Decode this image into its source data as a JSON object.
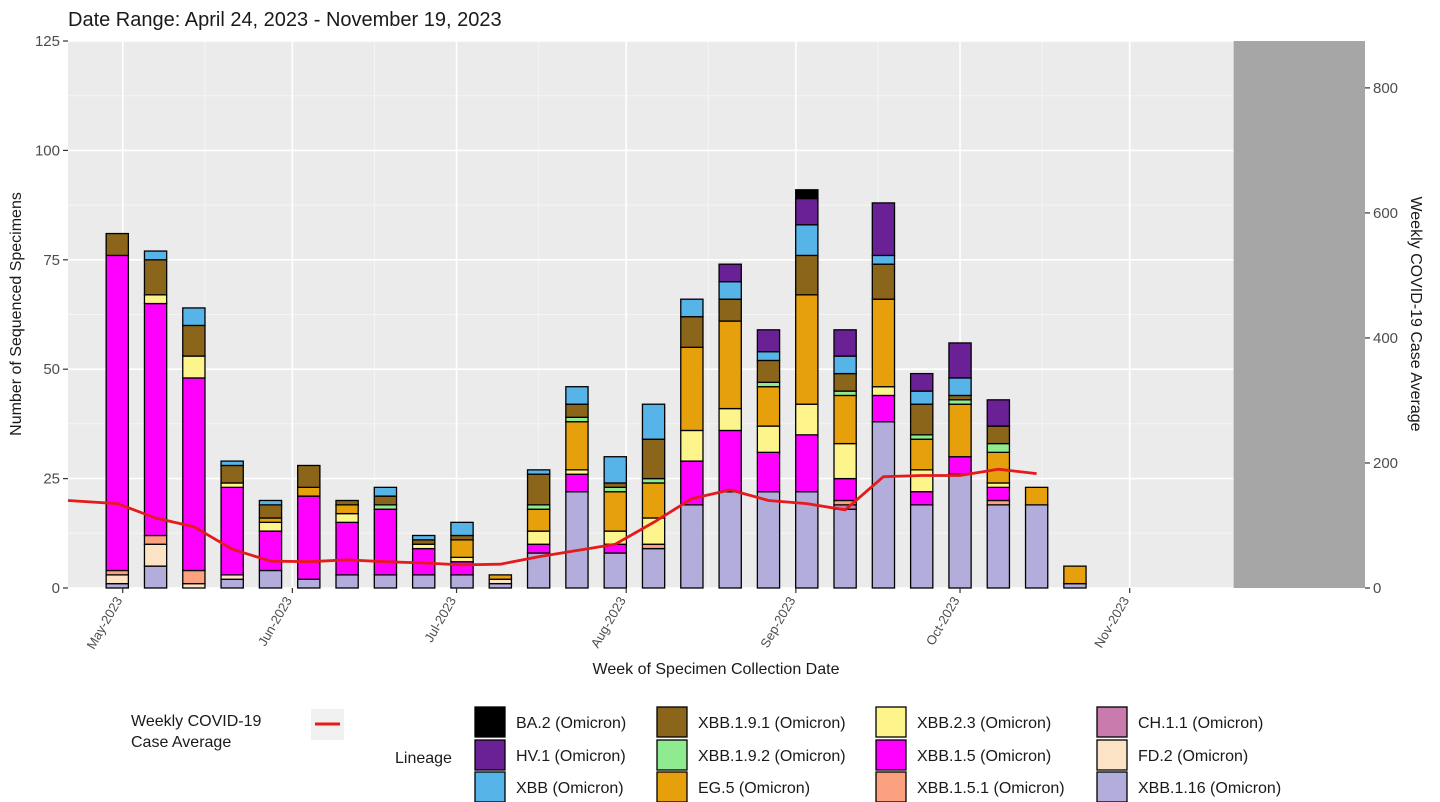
{
  "chart_data": {
    "type": "bar",
    "stacked": true,
    "title": "Date Range: April 24, 2023 - November 19, 2023",
    "xlabel": "Week of Specimen Collection Date",
    "ylabel": "Number of Sequenced Specimens",
    "y2label": "Weekly COVID-19 Case Average",
    "ylim": [
      0,
      125
    ],
    "y2lim": [
      0,
      875
    ],
    "yticks": [
      0,
      25,
      50,
      75,
      100,
      125
    ],
    "y2ticks": [
      0,
      200,
      400,
      600,
      800
    ],
    "grid": true,
    "xlim": [
      "2023-04-21",
      "2023-12-14"
    ],
    "shaded_region": {
      "start": "2023-11-20",
      "end": "2023-12-14",
      "color": "#a6a6a6"
    },
    "x_tick_labels": [
      {
        "date": "2023-05-01",
        "label": "May-2023"
      },
      {
        "date": "2023-06-01",
        "label": "Jun-2023"
      },
      {
        "date": "2023-07-01",
        "label": "Jul-2023"
      },
      {
        "date": "2023-08-01",
        "label": "Aug-2023"
      },
      {
        "date": "2023-09-01",
        "label": "Sep-2023"
      },
      {
        "date": "2023-10-01",
        "label": "Oct-2023"
      },
      {
        "date": "2023-11-01",
        "label": "Nov-2023"
      }
    ],
    "categories": [
      "2023-04-30",
      "2023-05-07",
      "2023-05-14",
      "2023-05-21",
      "2023-05-28",
      "2023-06-04",
      "2023-06-11",
      "2023-06-18",
      "2023-06-25",
      "2023-07-02",
      "2023-07-09",
      "2023-07-16",
      "2023-07-23",
      "2023-07-30",
      "2023-08-06",
      "2023-08-13",
      "2023-08-20",
      "2023-08-27",
      "2023-09-03",
      "2023-09-10",
      "2023-09-17",
      "2023-09-24",
      "2023-10-01",
      "2023-10-08",
      "2023-10-15",
      "2023-10-22"
    ],
    "legend_title": "Lineage",
    "series": [
      {
        "name": "XBB.1.16 (Omicron)",
        "color": "#b3addb",
        "values": [
          1,
          5,
          0,
          2,
          4,
          2,
          3,
          3,
          3,
          3,
          1,
          8,
          22,
          8,
          9,
          19,
          22,
          22,
          22,
          18,
          38,
          19,
          26,
          19,
          19,
          1
        ]
      },
      {
        "name": "FD.2 (Omicron)",
        "color": "#fde3c6",
        "values": [
          2,
          5,
          1,
          1,
          0,
          0,
          0,
          0,
          0,
          0,
          1,
          0,
          0,
          0,
          0,
          0,
          0,
          0,
          0,
          0,
          0,
          0,
          0,
          0,
          0,
          0
        ]
      },
      {
        "name": "CH.1.1 (Omicron)",
        "color": "#c97bae",
        "values": [
          0,
          0,
          0,
          0,
          0,
          0,
          0,
          0,
          0,
          0,
          0,
          0,
          0,
          0,
          0,
          0,
          0,
          0,
          0,
          1,
          0,
          0,
          0,
          0,
          0,
          0
        ]
      },
      {
        "name": "XBB.1.5.1 (Omicron)",
        "color": "#fba180",
        "values": [
          1,
          2,
          3,
          0,
          0,
          0,
          0,
          0,
          0,
          0,
          0,
          0,
          0,
          0,
          1,
          0,
          0,
          0,
          0,
          1,
          0,
          0,
          0,
          1,
          0,
          0
        ]
      },
      {
        "name": "XBB.1.5 (Omicron)",
        "color": "#ff00ff",
        "values": [
          72,
          53,
          44,
          20,
          9,
          19,
          12,
          15,
          6,
          3,
          0,
          2,
          4,
          2,
          0,
          10,
          14,
          9,
          13,
          5,
          6,
          3,
          4,
          3,
          0,
          0
        ]
      },
      {
        "name": "XBB.2.3 (Omicron)",
        "color": "#fdf58c",
        "values": [
          0,
          2,
          5,
          1,
          2,
          0,
          2,
          0,
          1,
          1,
          0,
          3,
          1,
          3,
          6,
          7,
          5,
          6,
          7,
          8,
          2,
          5,
          0,
          1,
          0,
          0
        ]
      },
      {
        "name": "EG.5 (Omicron)",
        "color": "#e6a00b",
        "values": [
          0,
          0,
          0,
          0,
          1,
          2,
          2,
          0,
          0,
          4,
          1,
          5,
          11,
          9,
          8,
          19,
          20,
          9,
          25,
          11,
          20,
          7,
          12,
          7,
          4,
          4
        ]
      },
      {
        "name": "XBB.1.9.2 (Omicron)",
        "color": "#8feb8f",
        "values": [
          0,
          0,
          0,
          0,
          0,
          0,
          0,
          1,
          0,
          0,
          0,
          1,
          1,
          1,
          1,
          0,
          0,
          1,
          0,
          1,
          0,
          1,
          1,
          2,
          0,
          0
        ]
      },
      {
        "name": "XBB.1.9.1 (Omicron)",
        "color": "#8b6519",
        "values": [
          5,
          8,
          7,
          4,
          3,
          5,
          1,
          2,
          1,
          1,
          0,
          7,
          3,
          1,
          9,
          7,
          5,
          5,
          9,
          4,
          8,
          7,
          1,
          4,
          0,
          0
        ]
      },
      {
        "name": "XBB (Omicron)",
        "color": "#56b4e9",
        "values": [
          0,
          2,
          4,
          1,
          1,
          0,
          0,
          2,
          1,
          3,
          0,
          1,
          4,
          6,
          8,
          4,
          4,
          2,
          7,
          4,
          2,
          3,
          4,
          0,
          0,
          0
        ]
      },
      {
        "name": "HV.1 (Omicron)",
        "color": "#6a2196",
        "values": [
          0,
          0,
          0,
          0,
          0,
          0,
          0,
          0,
          0,
          0,
          0,
          0,
          0,
          0,
          0,
          0,
          4,
          5,
          6,
          6,
          12,
          4,
          8,
          6,
          0,
          0
        ]
      },
      {
        "name": "BA.2 (Omicron)",
        "color": "#000000",
        "values": [
          0,
          0,
          0,
          0,
          0,
          0,
          0,
          0,
          0,
          0,
          0,
          0,
          0,
          0,
          0,
          0,
          0,
          0,
          2,
          0,
          0,
          0,
          0,
          0,
          0,
          0
        ]
      }
    ],
    "case_average": {
      "name": "Weekly COVID-19 Case Average",
      "color": "#e41a1c",
      "x": [
        "2023-04-21",
        "2023-04-30",
        "2023-05-07",
        "2023-05-14",
        "2023-05-21",
        "2023-05-28",
        "2023-06-04",
        "2023-06-11",
        "2023-06-18",
        "2023-06-25",
        "2023-07-02",
        "2023-07-09",
        "2023-07-16",
        "2023-07-23",
        "2023-07-30",
        "2023-08-06",
        "2023-08-13",
        "2023-08-20",
        "2023-08-27",
        "2023-09-03",
        "2023-09-10",
        "2023-09-17",
        "2023-09-24",
        "2023-10-01",
        "2023-10-08",
        "2023-10-15"
      ],
      "values": [
        140,
        135,
        112,
        98,
        62,
        43,
        42,
        45,
        42,
        40,
        37,
        38,
        50,
        60,
        70,
        105,
        143,
        157,
        140,
        135,
        125,
        178,
        180,
        180,
        190,
        183
      ]
    },
    "legend_layout": [
      [
        "BA.2 (Omicron)",
        "XBB.1.9.1 (Omicron)",
        "XBB.2.3 (Omicron)",
        "CH.1.1 (Omicron)"
      ],
      [
        "HV.1 (Omicron)",
        "XBB.1.9.2 (Omicron)",
        "XBB.1.5 (Omicron)",
        "FD.2 (Omicron)"
      ],
      [
        "XBB (Omicron)",
        "EG.5 (Omicron)",
        "XBB.1.5.1 (Omicron)",
        "XBB.1.16 (Omicron)"
      ]
    ],
    "line_legend": {
      "line1": "Weekly COVID-19",
      "line2": "Case Average"
    }
  }
}
